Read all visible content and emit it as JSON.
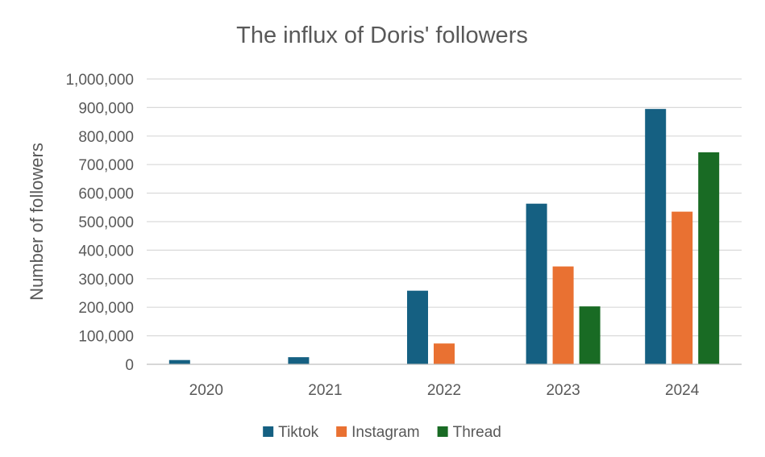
{
  "chart_data": {
    "type": "bar",
    "title": "The influx of Doris' followers",
    "xlabel": "",
    "ylabel": "Number of followers",
    "categories": [
      "2020",
      "2021",
      "2022",
      "2023",
      "2024"
    ],
    "series": [
      {
        "name": "Tiktok",
        "color": "#156082",
        "values": [
          15000,
          25000,
          258000,
          563000,
          895000
        ]
      },
      {
        "name": "Instagram",
        "color": "#e97132",
        "values": [
          0,
          0,
          73000,
          343000,
          535000
        ]
      },
      {
        "name": "Thread",
        "color": "#196b24",
        "values": [
          0,
          0,
          0,
          203000,
          743000
        ]
      }
    ],
    "ylim": [
      0,
      1000000
    ],
    "ytick_values": [
      0,
      100000,
      200000,
      300000,
      400000,
      500000,
      600000,
      700000,
      800000,
      900000,
      1000000
    ],
    "ytick_labels": [
      "0",
      "100,000",
      "200,000",
      "300,000",
      "400,000",
      "500,000",
      "600,000",
      "700,000",
      "800,000",
      "900,000",
      "1,000,000"
    ],
    "grid": true,
    "legend_position": "bottom"
  }
}
